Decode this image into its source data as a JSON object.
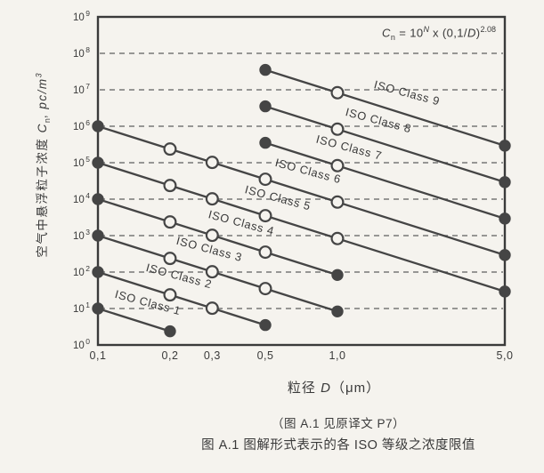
{
  "figure": {
    "formula": {
      "var": "C",
      "var_sub": "n",
      "eq": " = 10",
      "exp": "N",
      "mul": " x (0,1/",
      "d_var": "D",
      "close": ")",
      "exp2": "2.08"
    },
    "x_axis_title": {
      "prefix": "粒径 ",
      "var": "D",
      "unit": "（μm）"
    },
    "y_axis_title": {
      "cjk": "空气中悬浮粒子浓度 ",
      "var": "C",
      "var_sub": "n",
      "comma": ",  ",
      "unit": "pc/m",
      "unit_sup": "3"
    },
    "caption_note": "（图 A.1 见原译文 P7）",
    "caption_title": "图 A.1 图解形式表示的各 ISO 等级之浓度限值"
  },
  "chart_data": {
    "type": "line",
    "title": "",
    "formula_text": "Cn = 10^N x (0,1/D)^2.08",
    "x_axis": {
      "label": "粒径 D（μm）",
      "scale": "log",
      "range": [
        0.1,
        5.0
      ],
      "ticks": [
        0.1,
        0.2,
        0.3,
        0.5,
        1.0,
        5.0
      ],
      "tick_labels": [
        "0,1",
        "0,2",
        "0,3",
        "0,5",
        "1,0",
        "5,0"
      ]
    },
    "y_axis": {
      "label": "空气中悬浮粒子浓度 Cn, pc/m3",
      "scale": "log",
      "range": [
        1,
        1000000000
      ],
      "tick_base": "10",
      "tick_exponents": [
        0,
        1,
        2,
        3,
        4,
        5,
        6,
        7,
        8,
        9
      ],
      "grid_exponents": [
        1,
        2,
        3,
        4,
        5,
        6,
        7,
        8
      ],
      "grid_style": "dashed"
    },
    "marker_style": {
      "endpoints": "filled",
      "intermediate": "open"
    },
    "legend": "labels written along each line",
    "series": [
      {
        "name": "ISO Class 1",
        "N": 1,
        "x": [
          0.1,
          0.2
        ],
        "y": [
          10,
          2.37
        ],
        "label_anchor_x": 55
      },
      {
        "name": "ISO Class 2",
        "N": 2,
        "x": [
          0.1,
          0.2,
          0.3,
          0.5
        ],
        "y": [
          100,
          23.7,
          10.2,
          3.52
        ],
        "label_anchor_x": 90
      },
      {
        "name": "ISO Class 3",
        "N": 3,
        "x": [
          0.1,
          0.2,
          0.3,
          0.5,
          1.0
        ],
        "y": [
          1000,
          237,
          102,
          35.2,
          8.32
        ],
        "label_anchor_x": 124
      },
      {
        "name": "ISO Class 4",
        "N": 4,
        "x": [
          0.1,
          0.2,
          0.3,
          0.5,
          1.0
        ],
        "y": [
          10000,
          2370,
          1020,
          352,
          83.2
        ],
        "label_anchor_x": 160
      },
      {
        "name": "ISO Class 5",
        "N": 5,
        "x": [
          0.1,
          0.2,
          0.3,
          0.5,
          1.0,
          5.0
        ],
        "y": [
          100000,
          23700,
          10200,
          3520,
          832,
          29.3
        ],
        "label_anchor_x": 201
      },
      {
        "name": "ISO Class 6",
        "N": 6,
        "x": [
          0.1,
          0.2,
          0.3,
          0.5,
          1.0,
          5.0
        ],
        "y": [
          1000000,
          237000,
          102000,
          35200,
          8320,
          293
        ],
        "label_anchor_x": 235
      },
      {
        "name": "ISO Class 7",
        "N": 7,
        "x": [
          0.5,
          1.0,
          5.0
        ],
        "y": [
          352000,
          83200,
          2930
        ],
        "label_anchor_x": 281
      },
      {
        "name": "ISO Class 8",
        "N": 8,
        "x": [
          0.5,
          1.0,
          5.0
        ],
        "y": [
          3520000,
          832000,
          29300
        ],
        "label_anchor_x": 314
      },
      {
        "name": "ISO Class 9",
        "N": 9,
        "x": [
          0.5,
          1.0,
          5.0
        ],
        "y": [
          35200000,
          8320000,
          293000
        ],
        "label_anchor_x": 346
      }
    ]
  },
  "style": {
    "paper": "#f5f3ee",
    "ink": "#3a3a3a",
    "line_color": "#454545",
    "grid_color": "#777777",
    "label_rotation_deg": 15
  }
}
